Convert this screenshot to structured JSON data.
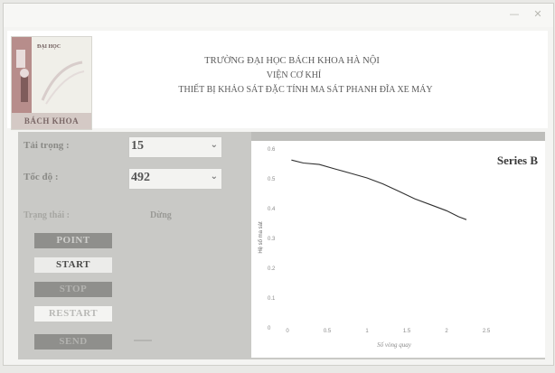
{
  "window": {
    "minimize": "—",
    "close": "✕"
  },
  "logo": {
    "top_text": "ĐẠI HỌC",
    "bottom_text": "BÁCH KHOA"
  },
  "header": {
    "line1": "TRƯỜNG ĐẠI HỌC BÁCH KHOA HÀ NỘI",
    "line2": "VIỆN CƠ KHÍ",
    "line3": "THIẾT BỊ KHẢO SÁT ĐẶC TÍNH MA SÁT PHANH ĐĨA XE MÁY"
  },
  "controls": {
    "load_label": "Tải trọng :",
    "load_value": "15",
    "speed_label": "Tốc độ      :",
    "speed_value": "492",
    "status_label": "Trạng thái :",
    "status_value": "Dừng"
  },
  "buttons": {
    "point": "POINT",
    "start": "START",
    "stop": "STOP",
    "restart": "RESTART",
    "send": "SEND"
  },
  "colors": {
    "series": "#303030",
    "panel": "#c9c9c6",
    "button_dark": "#8f8f8c"
  },
  "chart_data": {
    "type": "line",
    "xlabel": "Số vòng quay",
    "ylabel": "Hệ số ma sát",
    "xlim": [
      0,
      25
    ],
    "ylim": [
      0,
      0.6
    ],
    "x_ticks": [
      "0",
      "0.5",
      "1",
      "1.5",
      "2",
      "2.5"
    ],
    "y_ticks": [
      "0",
      "0.1",
      "0.2",
      "0.3",
      "0.4",
      "0.5",
      "0.6"
    ],
    "series": [
      {
        "name": "Series B",
        "x": [
          0.5,
          2,
          4,
          6,
          8,
          10,
          12,
          14,
          16,
          18,
          20,
          21.5,
          22.5
        ],
        "y": [
          0.56,
          0.55,
          0.545,
          0.53,
          0.515,
          0.5,
          0.48,
          0.455,
          0.43,
          0.41,
          0.39,
          0.37,
          0.36
        ]
      }
    ]
  }
}
